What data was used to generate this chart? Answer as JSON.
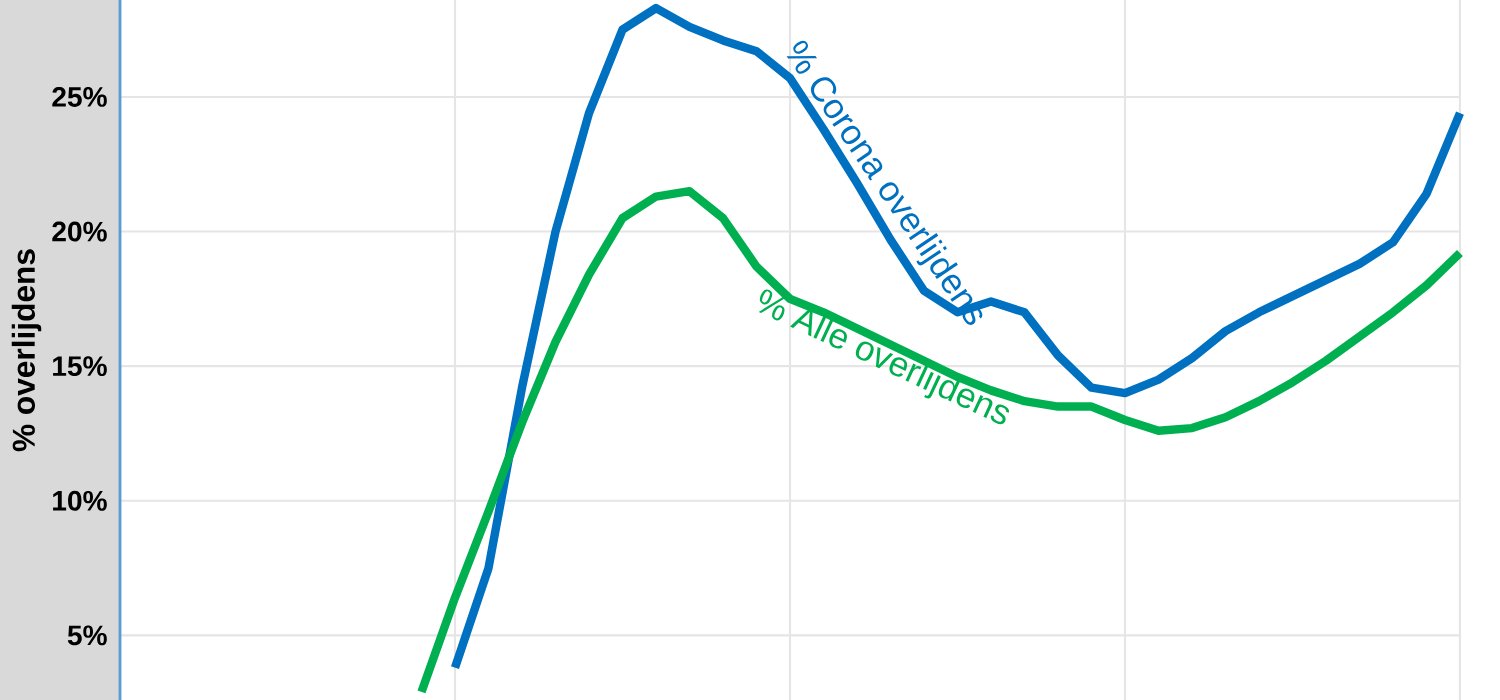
{
  "chart_data": {
    "type": "line",
    "ylabel": "% overlijdens",
    "ylim": [
      2.6,
      28.6
    ],
    "categories": [
      null,
      null,
      null,
      null,
      null,
      null,
      null,
      null,
      null,
      null,
      null,
      null,
      null,
      null,
      null,
      null,
      null,
      null,
      null,
      null,
      null,
      null,
      null,
      null,
      null,
      null,
      null,
      null,
      null,
      null,
      null,
      null,
      null,
      null,
      null,
      null,
      null,
      null,
      null,
      null,
      null
    ],
    "yticks": [
      {
        "value": 5,
        "label": "5%"
      },
      {
        "value": 10,
        "label": "10%"
      },
      {
        "value": 15,
        "label": "15%"
      },
      {
        "value": 20,
        "label": "20%"
      },
      {
        "value": 25,
        "label": "25%"
      }
    ],
    "grid": true,
    "marker": "none",
    "line_style": "solid",
    "series": [
      {
        "name": "% Corona overlijdens",
        "color": "#0070c0",
        "values": [
          null,
          null,
          null,
          null,
          null,
          null,
          null,
          null,
          null,
          null,
          3.8,
          7.5,
          14.2,
          20.0,
          24.4,
          27.5,
          28.3,
          27.6,
          27.1,
          26.7,
          25.7,
          23.8,
          21.8,
          19.7,
          17.8,
          17.0,
          17.4,
          17.0,
          15.4,
          14.2,
          14.0,
          14.5,
          15.3,
          16.3,
          17.0,
          17.6,
          18.2,
          18.8,
          19.6,
          21.4,
          24.4
        ]
      },
      {
        "name": "% Alle overlijdens",
        "color": "#00b050",
        "values": [
          null,
          null,
          null,
          null,
          null,
          null,
          null,
          null,
          null,
          2.9,
          6.4,
          9.6,
          12.9,
          15.9,
          18.4,
          20.5,
          21.3,
          21.5,
          20.5,
          18.7,
          17.5,
          17.0,
          16.4,
          15.8,
          15.2,
          14.6,
          14.1,
          13.7,
          13.5,
          13.5,
          13.0,
          12.6,
          12.7,
          13.1,
          13.7,
          14.4,
          15.2,
          16.1,
          17.0,
          18.0,
          19.2
        ]
      }
    ]
  }
}
